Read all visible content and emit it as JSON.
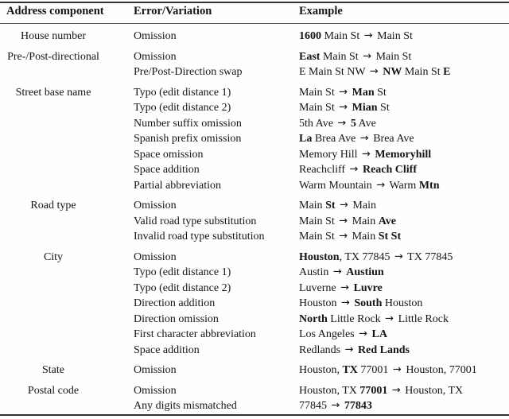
{
  "table": {
    "columns": [
      "Address component",
      "Error/Variation",
      "Example"
    ],
    "arrow_glyph": "→",
    "groups": [
      {
        "component": "House number",
        "rows": [
          {
            "error": "Omission",
            "example": "**1600** Main St → Main St"
          }
        ]
      },
      {
        "component": "Pre-/Post-directional",
        "rows": [
          {
            "error": "Omission",
            "example": "**East** Main St → Main St"
          },
          {
            "error": "Pre/Post-Direction swap",
            "example": "E Main St NW → **NW** Main St **E**"
          }
        ]
      },
      {
        "component": "Street base name",
        "rows": [
          {
            "error": "Typo (edit distance 1)",
            "example": "Main St → **Man** St"
          },
          {
            "error": "Typo (edit distance 2)",
            "example": "Main St → **Mian** St"
          },
          {
            "error": "Number suffix omission",
            "example": "5th Ave → **5** Ave"
          },
          {
            "error": "Spanish prefix omission",
            "example": "**La** Brea Ave → Brea Ave"
          },
          {
            "error": "Space omission",
            "example": "Memory Hill → **Memoryhill**"
          },
          {
            "error": "Space addition",
            "example": "Reachcliff → **Reach Cliff**"
          },
          {
            "error": "Partial abbreviation",
            "example": "Warm Mountain → Warm **Mtn**"
          }
        ]
      },
      {
        "component": "Road type",
        "rows": [
          {
            "error": "Omission",
            "example": "Main **St** → Main"
          },
          {
            "error": "Valid road type substitution",
            "example": "Main St → Main **Ave**"
          },
          {
            "error": "Invalid road type substitution",
            "example": "Main St → Main **St St**"
          }
        ]
      },
      {
        "component": "City",
        "rows": [
          {
            "error": "Omission",
            "example": "**Houston**, TX 77845 → TX 77845"
          },
          {
            "error": "Typo (edit distance 1)",
            "example": "Austin → **Austiun**"
          },
          {
            "error": "Typo (edit distance 2)",
            "example": "Luverne → **Luvre**"
          },
          {
            "error": "Direction addition",
            "example": "Houston → **South** Houston"
          },
          {
            "error": "Direction omission",
            "example": "**North** Little Rock → Little Rock"
          },
          {
            "error": "First character abbreviation",
            "example": "Los Angeles → **LA**"
          },
          {
            "error": "Space addition",
            "example": "Redlands → **Red Lands**"
          }
        ]
      },
      {
        "component": "State",
        "rows": [
          {
            "error": "Omission",
            "example": "Houston, **TX** 77001 → Houston, 77001"
          }
        ]
      },
      {
        "component": "Postal code",
        "rows": [
          {
            "error": "Omission",
            "example": "Houston, TX **77001** → Houston, TX"
          },
          {
            "error": "Any digits mismatched",
            "example": "77845 → **77843**"
          }
        ]
      }
    ]
  },
  "colors": {
    "rule_heavy": "#333333",
    "rule_light": "#4f4f4f",
    "text": "#151515",
    "background": "#fefefe"
  }
}
